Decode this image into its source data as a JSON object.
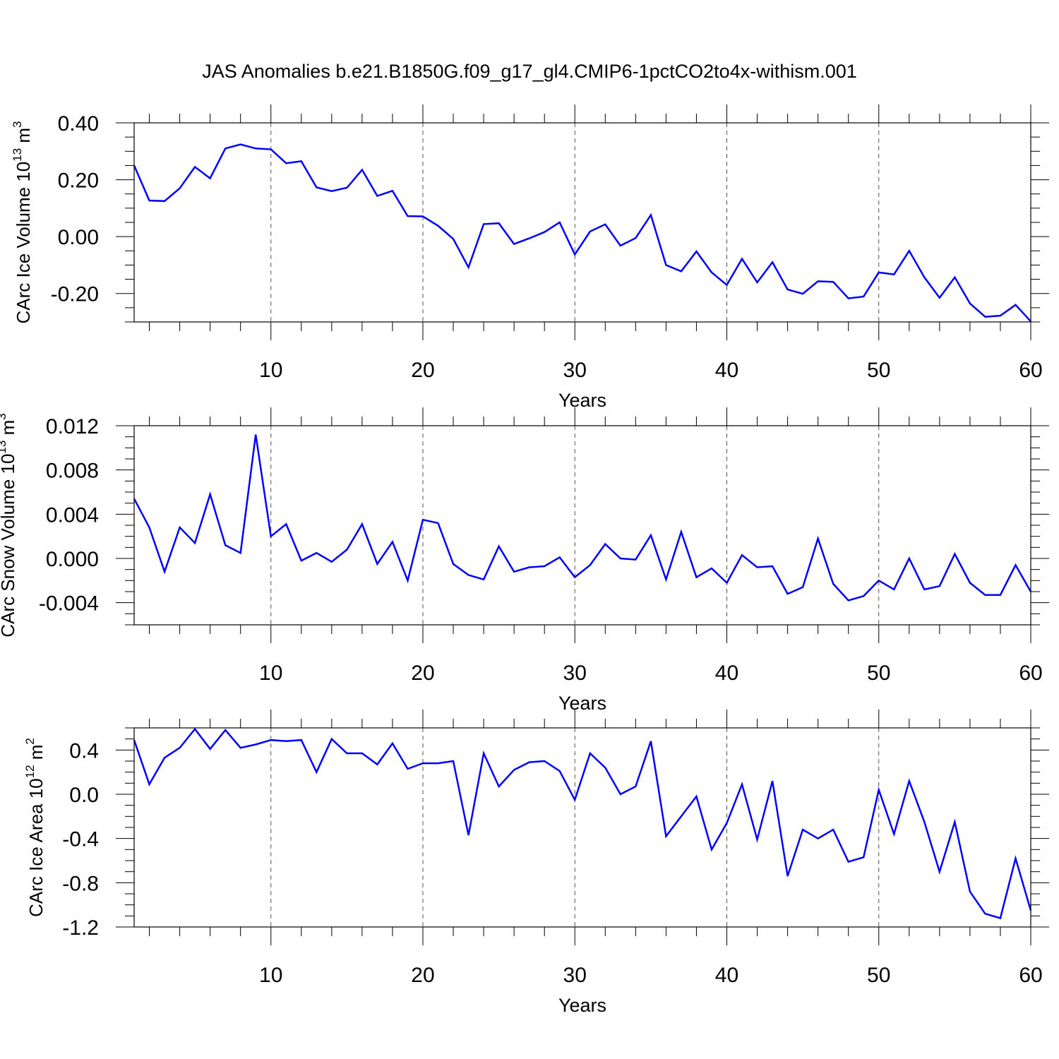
{
  "title": "JAS Anomalies b.e21.B1850G.f09_g17_gl4.CMIP6-1pctCO2to4x-withism.001",
  "line_color": "#0000ff",
  "chart_data": [
    {
      "type": "line",
      "id": "ice-volume",
      "ylabel": "CArc Ice Volume 10",
      "ylabel_exp": "13",
      "ylabel_unit": " m",
      "ylabel_unit_exp": "3",
      "xlabel": "Years",
      "xlim": [
        1,
        60
      ],
      "ylim": [
        -0.3,
        0.4
      ],
      "x_ticks": [
        10,
        20,
        30,
        40,
        50,
        60
      ],
      "x_tick_labels": [
        "10",
        "20",
        "30",
        "40",
        "50",
        "60"
      ],
      "y_ticks": [
        0.4,
        0.2,
        0.0,
        -0.2
      ],
      "y_tick_labels": [
        "0.40",
        "0.20",
        "0.00",
        "-0.20"
      ],
      "grid": "vertical dashed at major x ticks",
      "x": [
        1,
        2,
        3,
        4,
        5,
        6,
        7,
        8,
        9,
        10,
        11,
        12,
        13,
        14,
        15,
        16,
        17,
        18,
        19,
        20,
        21,
        22,
        23,
        24,
        25,
        26,
        27,
        28,
        29,
        30,
        31,
        32,
        33,
        34,
        35,
        36,
        37,
        38,
        39,
        40,
        41,
        42,
        43,
        44,
        45,
        46,
        47,
        48,
        49,
        50,
        51,
        52,
        53,
        54,
        55,
        56,
        57,
        58,
        59,
        60
      ],
      "values": [
        0.25,
        0.127,
        0.125,
        0.17,
        0.245,
        0.205,
        0.31,
        0.324,
        0.31,
        0.307,
        0.258,
        0.265,
        0.173,
        0.16,
        0.172,
        0.235,
        0.143,
        0.161,
        0.072,
        0.071,
        0.038,
        -0.008,
        -0.108,
        0.044,
        0.047,
        -0.026,
        -0.006,
        0.016,
        0.05,
        -0.063,
        0.018,
        0.043,
        -0.032,
        -0.005,
        0.076,
        -0.1,
        -0.122,
        -0.052,
        -0.126,
        -0.17,
        -0.078,
        -0.161,
        -0.09,
        -0.186,
        -0.201,
        -0.157,
        -0.159,
        -0.217,
        -0.211,
        -0.126,
        -0.133,
        -0.05,
        -0.143,
        -0.215,
        -0.143,
        -0.235,
        -0.282,
        -0.278,
        -0.24,
        -0.298
      ]
    },
    {
      "type": "line",
      "id": "snow-volume",
      "ylabel": "CArc Snow Volume 10",
      "ylabel_exp": "13",
      "ylabel_unit": " m",
      "ylabel_unit_exp": "3",
      "xlabel": "Years",
      "xlim": [
        1,
        60
      ],
      "ylim": [
        -0.006,
        0.012
      ],
      "x_ticks": [
        10,
        20,
        30,
        40,
        50,
        60
      ],
      "x_tick_labels": [
        "10",
        "20",
        "30",
        "40",
        "50",
        "60"
      ],
      "y_ticks": [
        0.012,
        0.008,
        0.004,
        0.0,
        -0.004
      ],
      "y_tick_labels": [
        "0.012",
        "0.008",
        "0.004",
        "0.000",
        "-0.004"
      ],
      "grid": "vertical dashed at major x ticks",
      "x": [
        1,
        2,
        3,
        4,
        5,
        6,
        7,
        8,
        9,
        10,
        11,
        12,
        13,
        14,
        15,
        16,
        17,
        18,
        19,
        20,
        21,
        22,
        23,
        24,
        25,
        26,
        27,
        28,
        29,
        30,
        31,
        32,
        33,
        34,
        35,
        36,
        37,
        38,
        39,
        40,
        41,
        42,
        43,
        44,
        45,
        46,
        47,
        48,
        49,
        50,
        51,
        52,
        53,
        54,
        55,
        56,
        57,
        58,
        59,
        60
      ],
      "values": [
        0.0054,
        0.0028,
        -0.0012,
        0.0028,
        0.0014,
        0.0058,
        0.0012,
        0.0005,
        0.0112,
        0.002,
        0.0031,
        -0.0002,
        0.0005,
        -0.0003,
        0.0008,
        0.0031,
        -0.0005,
        0.0015,
        -0.002,
        0.0035,
        0.0032,
        -0.0005,
        -0.0015,
        -0.0019,
        0.0011,
        -0.0012,
        -0.0008,
        -0.0007,
        0.0001,
        -0.0017,
        -0.0006,
        0.0013,
        0.0,
        -0.0001,
        0.0021,
        -0.0019,
        0.0024,
        -0.0017,
        -0.0009,
        -0.0022,
        0.0003,
        -0.0008,
        -0.0007,
        -0.0032,
        -0.0026,
        0.0018,
        -0.0023,
        -0.0038,
        -0.0034,
        -0.002,
        -0.0028,
        0.0,
        -0.0028,
        -0.0025,
        0.0004,
        -0.0022,
        -0.0033,
        -0.0033,
        -0.0006,
        -0.003
      ]
    },
    {
      "type": "line",
      "id": "ice-area",
      "ylabel": "CArc Ice Area 10",
      "ylabel_exp": "12",
      "ylabel_unit": " m",
      "ylabel_unit_exp": "2",
      "xlabel": "Years",
      "xlim": [
        1,
        60
      ],
      "ylim": [
        -1.2,
        0.6
      ],
      "x_ticks": [
        10,
        20,
        30,
        40,
        50,
        60
      ],
      "x_tick_labels": [
        "10",
        "20",
        "30",
        "40",
        "50",
        "60"
      ],
      "y_ticks": [
        0.4,
        0.0,
        -0.4,
        -0.8,
        -1.2
      ],
      "y_tick_labels": [
        "0.4",
        "0.0",
        "-0.4",
        "-0.8",
        "-1.2"
      ],
      "grid": "vertical dashed at major x ticks",
      "x": [
        1,
        2,
        3,
        4,
        5,
        6,
        7,
        8,
        9,
        10,
        11,
        12,
        13,
        14,
        15,
        16,
        17,
        18,
        19,
        20,
        21,
        22,
        23,
        24,
        25,
        26,
        27,
        28,
        29,
        30,
        31,
        32,
        33,
        34,
        35,
        36,
        37,
        38,
        39,
        40,
        41,
        42,
        43,
        44,
        45,
        46,
        47,
        48,
        49,
        50,
        51,
        52,
        53,
        54,
        55,
        56,
        57,
        58,
        59,
        60
      ],
      "values": [
        0.49,
        0.09,
        0.33,
        0.42,
        0.59,
        0.41,
        0.58,
        0.42,
        0.45,
        0.49,
        0.48,
        0.49,
        0.2,
        0.5,
        0.37,
        0.37,
        0.27,
        0.46,
        0.23,
        0.28,
        0.28,
        0.3,
        -0.37,
        0.37,
        0.07,
        0.22,
        0.29,
        0.3,
        0.21,
        -0.05,
        0.37,
        0.24,
        0.0,
        0.07,
        0.48,
        -0.38,
        -0.2,
        -0.02,
        -0.5,
        -0.26,
        0.09,
        -0.41,
        0.12,
        -0.74,
        -0.32,
        -0.4,
        -0.32,
        -0.61,
        -0.57,
        0.04,
        -0.36,
        0.12,
        -0.25,
        -0.7,
        -0.25,
        -0.88,
        -1.08,
        -1.12,
        -0.58,
        -1.05
      ]
    }
  ]
}
